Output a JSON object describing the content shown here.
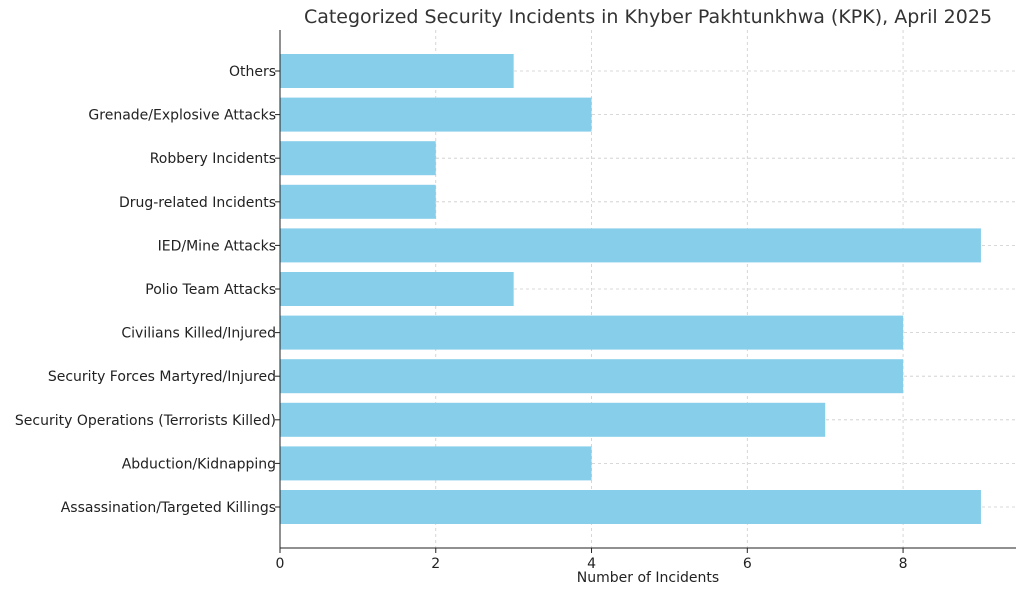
{
  "chart_data": {
    "type": "bar",
    "orientation": "horizontal",
    "title": "Categorized Security Incidents in Khyber Pakhtunkhwa (KPK), April 2025",
    "xlabel": "Number of Incidents",
    "ylabel": "",
    "categories": [
      "Assassination/Targeted Killings",
      "Abduction/Kidnapping",
      "Security Operations (Terrorists Killed)",
      "Security Forces Martyred/Injured",
      "Civilians Killed/Injured",
      "Polio Team Attacks",
      "IED/Mine Attacks",
      "Drug-related Incidents",
      "Robbery Incidents",
      "Grenade/Explosive Attacks",
      "Others"
    ],
    "values": [
      9,
      4,
      7,
      8,
      8,
      3,
      9,
      2,
      2,
      4,
      3
    ],
    "xlim": [
      0,
      9.45
    ],
    "xticks": [
      0,
      2,
      4,
      6,
      8
    ],
    "grid": true,
    "bar_color": "#87CEEB"
  }
}
